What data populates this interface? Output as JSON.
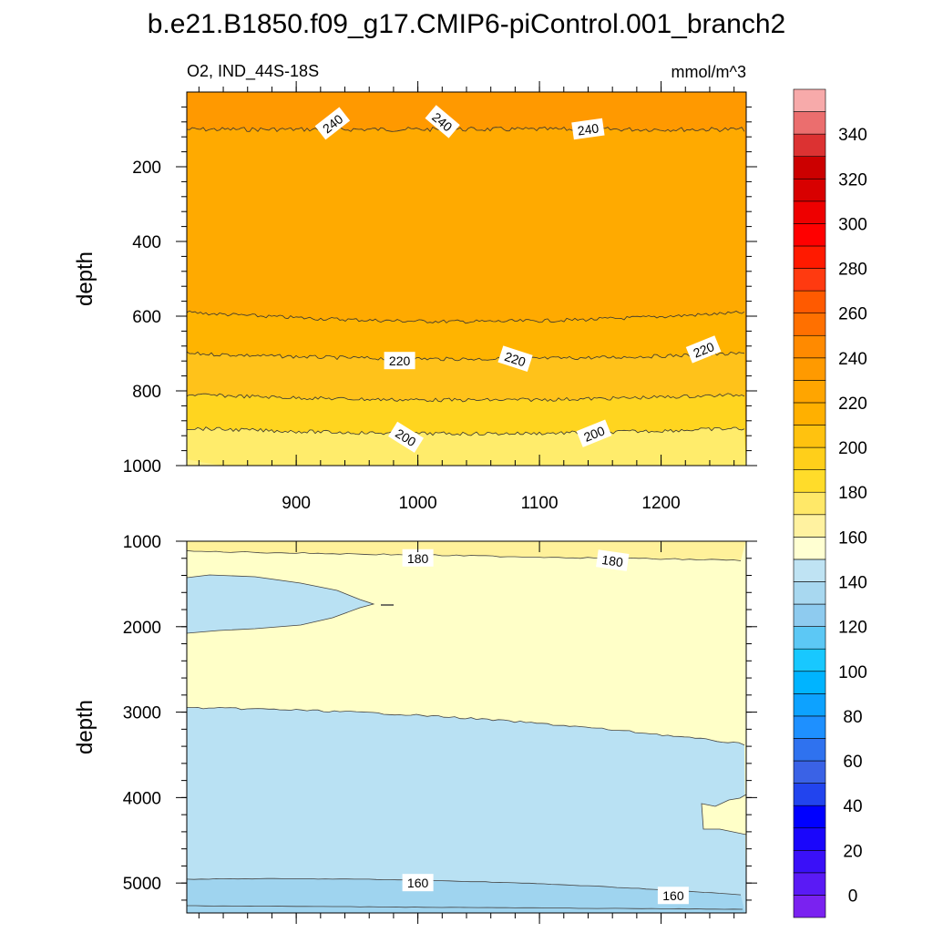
{
  "figure": {
    "title": "b.e21.B1850.f09_g17.CMIP6-piControl.001_branch2",
    "left_subtitle": "O2, IND_44S-18S",
    "right_subtitle": "mmol/m^3"
  },
  "chart_data": [
    {
      "type": "contour",
      "panel": "upper",
      "x": {
        "range": [
          810,
          1270
        ],
        "ticks": [
          900,
          1000,
          1100,
          1200
        ],
        "tick_labels": [
          "900",
          "1000",
          "1100",
          "1200"
        ]
      },
      "y": {
        "label": "depth",
        "range": [
          0,
          1000
        ],
        "inverted": true,
        "ticks": [
          200,
          400,
          600,
          800,
          1000
        ],
        "tick_labels": [
          "200",
          "400",
          "600",
          "800",
          "1000"
        ]
      },
      "contour_levels": [
        {
          "level": 240,
          "depth": 100,
          "color": "#ff9900"
        },
        {
          "level": 230,
          "depth": 590,
          "color": "#ffaa00"
        },
        {
          "level": 220,
          "depth": 700,
          "color": "#ffb400"
        },
        {
          "level": 210,
          "depth": 810,
          "color": "#ffc21a"
        },
        {
          "level": 200,
          "depth": 900,
          "color": "#ffd51f"
        },
        {
          "level": 190,
          "depth": 1000,
          "color": "#ffec6b"
        }
      ],
      "line_labels": [
        {
          "text": "240",
          "x": 930,
          "depth": 85,
          "angle": -38
        },
        {
          "text": "240",
          "x": 1020,
          "depth": 80,
          "angle": 40
        },
        {
          "text": "240",
          "x": 1140,
          "depth": 100,
          "angle": -8
        },
        {
          "text": "220",
          "x": 985,
          "depth": 720,
          "angle": 0
        },
        {
          "text": "220",
          "x": 1080,
          "depth": 715,
          "angle": 18
        },
        {
          "text": "220",
          "x": 1235,
          "depth": 690,
          "angle": -22
        },
        {
          "text": "200",
          "x": 990,
          "depth": 925,
          "angle": 32
        },
        {
          "text": "200",
          "x": 1145,
          "depth": 915,
          "angle": -22
        }
      ]
    },
    {
      "type": "contour",
      "panel": "lower",
      "x": {
        "range": [
          810,
          1270
        ],
        "ticks": [
          900,
          1000,
          1100,
          1200
        ]
      },
      "y": {
        "label": "depth",
        "range": [
          1000,
          5350
        ],
        "inverted": true,
        "ticks": [
          1000,
          2000,
          3000,
          4000,
          5000
        ],
        "tick_labels": [
          "1000",
          "2000",
          "3000",
          "4000",
          "5000"
        ]
      },
      "regions": [
        {
          "level": 180,
          "description": "upper band 1000-1200 m",
          "color": "#fff19a"
        },
        {
          "level": 170,
          "description": "bulk 1200-3000 m",
          "color": "#ffffc8"
        },
        {
          "level": 160,
          "description": "intrusion 1400-2100 m (west)",
          "color": "#b9e1f3"
        },
        {
          "level": 160,
          "description": "deep water below ~3000 m",
          "color": "#b9e1f3"
        },
        {
          "level": 150,
          "description": "bottom layer below ~5000 m",
          "color": "#9fd4ef"
        }
      ],
      "line_labels": [
        {
          "text": "180",
          "x": 1000,
          "depth": 1200,
          "angle": 0
        },
        {
          "text": "180",
          "x": 1160,
          "depth": 1230,
          "angle": 8
        },
        {
          "text": "160",
          "x": 1000,
          "depth": 5000,
          "angle": 0
        },
        {
          "text": "160",
          "x": 1210,
          "depth": 5150,
          "angle": 0
        }
      ]
    }
  ],
  "colorbar": {
    "tick_labels": [
      "0",
      "20",
      "40",
      "60",
      "80",
      "100",
      "120",
      "140",
      "160",
      "180",
      "200",
      "220",
      "240",
      "260",
      "280",
      "300",
      "320",
      "340"
    ],
    "tick_values": [
      0,
      20,
      40,
      60,
      80,
      100,
      120,
      140,
      160,
      180,
      200,
      220,
      240,
      260,
      280,
      300,
      320,
      340
    ],
    "levels_min": -10,
    "levels_max": 360,
    "level_step": 10,
    "colors": [
      "#7a22f0",
      "#5a1af5",
      "#3a10f8",
      "#1a06fb",
      "#0000ff",
      "#2244ee",
      "#3a62e6",
      "#2f72ef",
      "#1e90ff",
      "#0da2ff",
      "#00b4ff",
      "#18c8ff",
      "#5cc8f5",
      "#8ecbef",
      "#a8d8f0",
      "#bfe3f3",
      "#ffffd2",
      "#fff2a0",
      "#ffe868",
      "#ffdc2a",
      "#ffcf1a",
      "#ffc20f",
      "#ffb000",
      "#ffa500",
      "#ff9a00",
      "#ff8a00",
      "#ff7000",
      "#ff5a00",
      "#ff3a10",
      "#ff1a00",
      "#ff0000",
      "#ee0000",
      "#d80000",
      "#cc0000",
      "#dc3232",
      "#eb6e6e",
      "#f7aaaa"
    ]
  }
}
